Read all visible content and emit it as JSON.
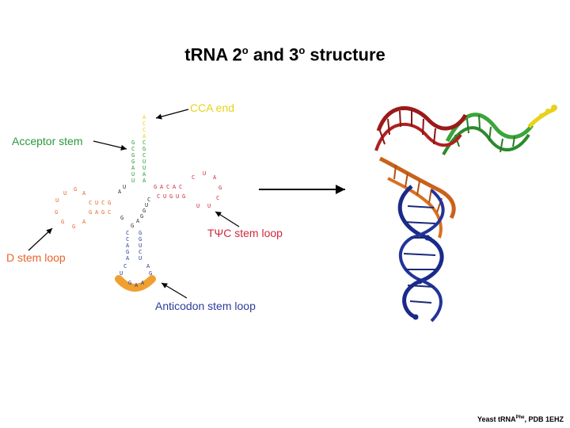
{
  "title": {
    "text": "tRNA 2",
    "sup1": "o",
    "mid": " and 3",
    "sup2": "o",
    "end": " structure"
  },
  "labels": {
    "cca_end": "CCA end",
    "acceptor_stem": "Acceptor stem",
    "tpsic_stem_loop": "TΨC stem loop",
    "d_stem_loop": "D stem loop",
    "anticodon_stem_loop": "Anticodon stem loop"
  },
  "colors": {
    "cca": "#e8d21a",
    "acceptor": "#2a9a3a",
    "tpsic": "#d0283c",
    "d_loop": "#e8642a",
    "anticodon": "#2a3e9a",
    "anticodon_highlight": "#f0a030",
    "linker": "#333333"
  },
  "sequence": {
    "cca_column": [
      "A",
      "C",
      "C",
      "A"
    ],
    "acceptor_left": [
      "G",
      "C",
      "G",
      "G",
      "A",
      "U",
      "U"
    ],
    "acceptor_right": [
      "C",
      "G",
      "C",
      "U",
      "U",
      "A",
      "A"
    ],
    "linker1": [
      "U",
      "A"
    ],
    "d_stem_top": [
      "C",
      "U",
      "C",
      "G"
    ],
    "d_stem_bottom": [
      "G",
      "A",
      "G",
      "C"
    ],
    "d_loop": [
      "U",
      "G",
      "A",
      "U",
      "G",
      "G",
      "G",
      "A"
    ],
    "linker2": [
      "G"
    ],
    "tpsic_stem_top": [
      "G",
      "A",
      "C",
      "A",
      "C"
    ],
    "tpsic_stem_bottom": [
      "C",
      "U",
      "G",
      "U",
      "G"
    ],
    "tpsic_loop": [
      "C",
      "U",
      "A",
      "G",
      "C",
      "U",
      "U"
    ],
    "variable_loop": [
      "C",
      "U",
      "G",
      "G",
      "A",
      "G"
    ],
    "anticodon_left": [
      "C",
      "C",
      "A",
      "G",
      "A"
    ],
    "anticodon_right": [
      "G",
      "G",
      "U",
      "C",
      "U"
    ],
    "anticodon_loop_left": [
      "C",
      "U"
    ],
    "anticodon_loop_right": [
      "A",
      "G"
    ],
    "anticodon": [
      "G",
      "A",
      "A"
    ]
  },
  "caption": {
    "prefix": "Yeast tRNA",
    "sup": "Phe",
    "suffix": ", PDB 1EHZ"
  }
}
